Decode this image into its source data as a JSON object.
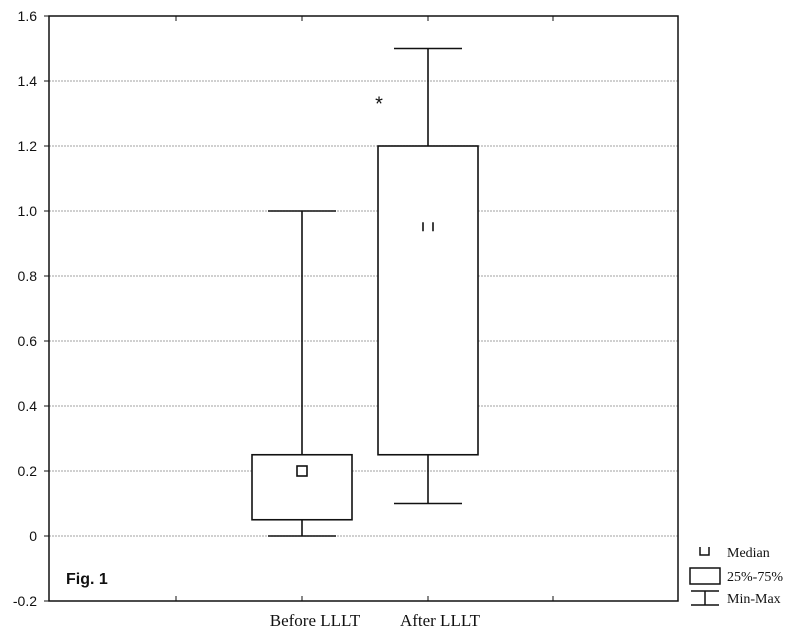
{
  "figure_label": "Fig. 1",
  "legend": {
    "median": "Median",
    "box": "25%-75%",
    "whisker": "Min-Max"
  },
  "chart_data": {
    "type": "box",
    "categories": [
      "Before LLLT",
      "After LLLT"
    ],
    "ylim": [
      -0.2,
      1.6
    ],
    "yticks": [
      -0.2,
      0,
      0.2,
      0.4,
      0.6,
      0.8,
      1.0,
      1.2,
      1.4,
      1.6
    ],
    "ytick_labels": [
      "-0.2",
      "0",
      "0.2",
      "0.4",
      "0.6",
      "0.8",
      "1.0",
      "1.2",
      "1.4",
      "1.6"
    ],
    "grid": true,
    "boxes": [
      {
        "category": "Before LLLT",
        "min": 0.0,
        "q1": 0.05,
        "median": 0.2,
        "q3": 0.25,
        "max": 1.0
      },
      {
        "category": "After LLLT",
        "min": 0.1,
        "q1": 0.25,
        "median": 0.95,
        "q3": 1.2,
        "max": 1.5
      }
    ],
    "annotations": [
      {
        "text": "*",
        "category": "After LLLT",
        "y": 1.34
      }
    ],
    "legend_position": "bottom-right"
  }
}
